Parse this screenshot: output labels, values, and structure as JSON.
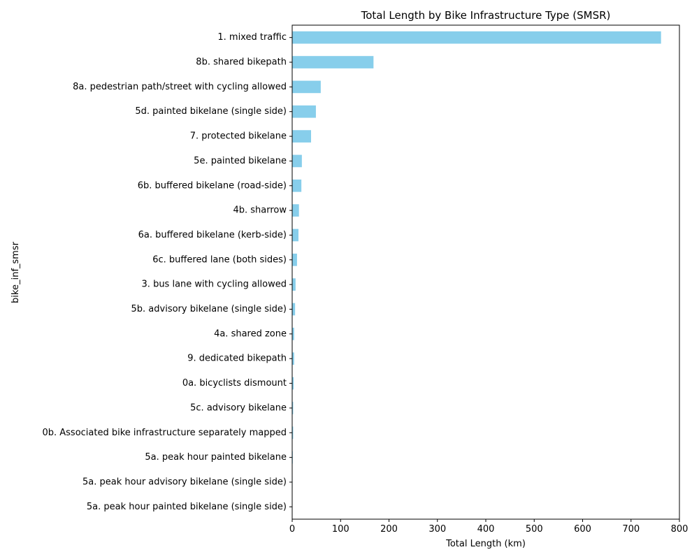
{
  "chart_data": {
    "type": "bar",
    "orientation": "horizontal",
    "title": "Total Length by Bike Infrastructure Type (SMSR)",
    "xlabel": "Total Length (km)",
    "ylabel": "bike_inf_smsr",
    "xlim": [
      0,
      800
    ],
    "xticks": [
      0,
      100,
      200,
      300,
      400,
      500,
      600,
      700,
      800
    ],
    "grid": false,
    "bar_color": "#87CEEB",
    "categories": [
      "1. mixed traffic",
      "8b. shared bikepath",
      "8a. pedestrian path/street with cycling allowed",
      "5d. painted bikelane (single side)",
      "7. protected bikelane",
      "5e. painted bikelane",
      "6b. buffered bikelane (road-side)",
      "4b. sharrow",
      "6a. buffered bikelane (kerb-side)",
      "6c. buffered lane (both sides)",
      "3. bus lane with cycling allowed",
      "5b. advisory bikelane (single side)",
      "4a. shared zone",
      "9. dedicated bikepath",
      "0a. bicyclists dismount",
      "5c. advisory bikelane",
      "0b. Associated bike infrastructure separately mapped",
      "5a. peak hour painted bikelane",
      "5a. peak hour advisory bikelane (single side)",
      "5a. peak hour painted bikelane (single side)"
    ],
    "values": [
      762,
      168,
      59,
      49,
      39,
      20,
      19,
      14,
      13,
      10,
      7,
      6,
      4,
      4,
      3,
      2,
      2,
      1.2,
      0.8,
      0.5
    ]
  }
}
